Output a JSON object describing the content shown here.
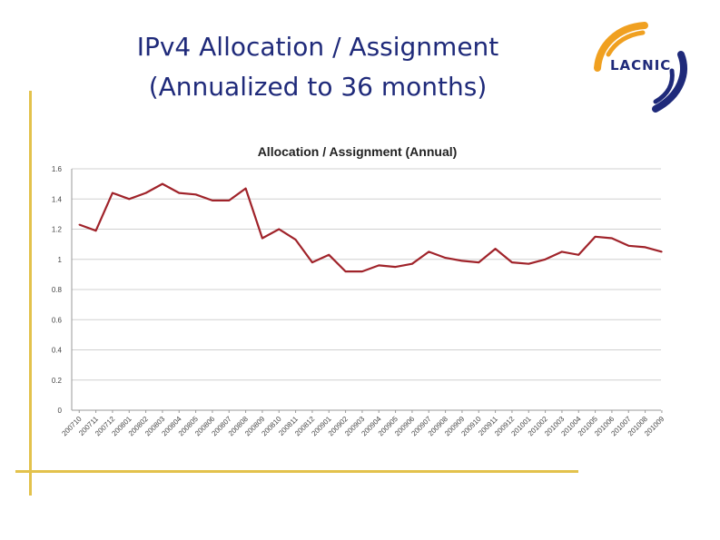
{
  "slide": {
    "title_line1": "IPv4 Allocation / Assignment",
    "title_line2": "(Annualized to 36 months)"
  },
  "logo": {
    "text": "LACNIC",
    "colors": {
      "orange": "#f0a020",
      "blue": "#1f2a7a"
    }
  },
  "colors": {
    "series": "#a0232a",
    "grid": "#d0d0d0",
    "title": "#1f2a7a",
    "frame": "#e3c24c"
  },
  "chart_data": {
    "type": "line",
    "title": "Allocation / Assignment (Annual)",
    "xlabel": "",
    "ylabel": "",
    "ylim": [
      0,
      1.6
    ],
    "yticks": [
      "0",
      "0.2",
      "0.4",
      "0.6",
      "0.8",
      "1",
      "1.2",
      "1.4",
      "1.6"
    ],
    "grid": true,
    "legend": "none",
    "categories": [
      "200710",
      "200711",
      "200712",
      "200801",
      "200802",
      "200803",
      "200804",
      "200805",
      "200806",
      "200807",
      "200808",
      "200809",
      "200810",
      "200811",
      "200812",
      "200901",
      "200902",
      "200903",
      "200904",
      "200905",
      "200906",
      "200907",
      "200908",
      "200909",
      "200910",
      "200911",
      "200912",
      "201001",
      "201002",
      "201003",
      "201004",
      "201005",
      "201006",
      "201007",
      "201008",
      "201009"
    ],
    "series": [
      {
        "values": [
          1.23,
          1.19,
          1.44,
          1.4,
          1.44,
          1.5,
          1.44,
          1.43,
          1.39,
          1.39,
          1.47,
          1.14,
          1.2,
          1.13,
          0.98,
          1.03,
          0.92,
          0.92,
          0.96,
          0.95,
          0.97,
          1.05,
          1.01,
          0.99,
          0.98,
          1.07,
          0.98,
          0.97,
          1.0,
          1.05,
          1.03,
          1.15,
          1.14,
          1.09,
          1.08,
          1.05
        ]
      }
    ]
  }
}
